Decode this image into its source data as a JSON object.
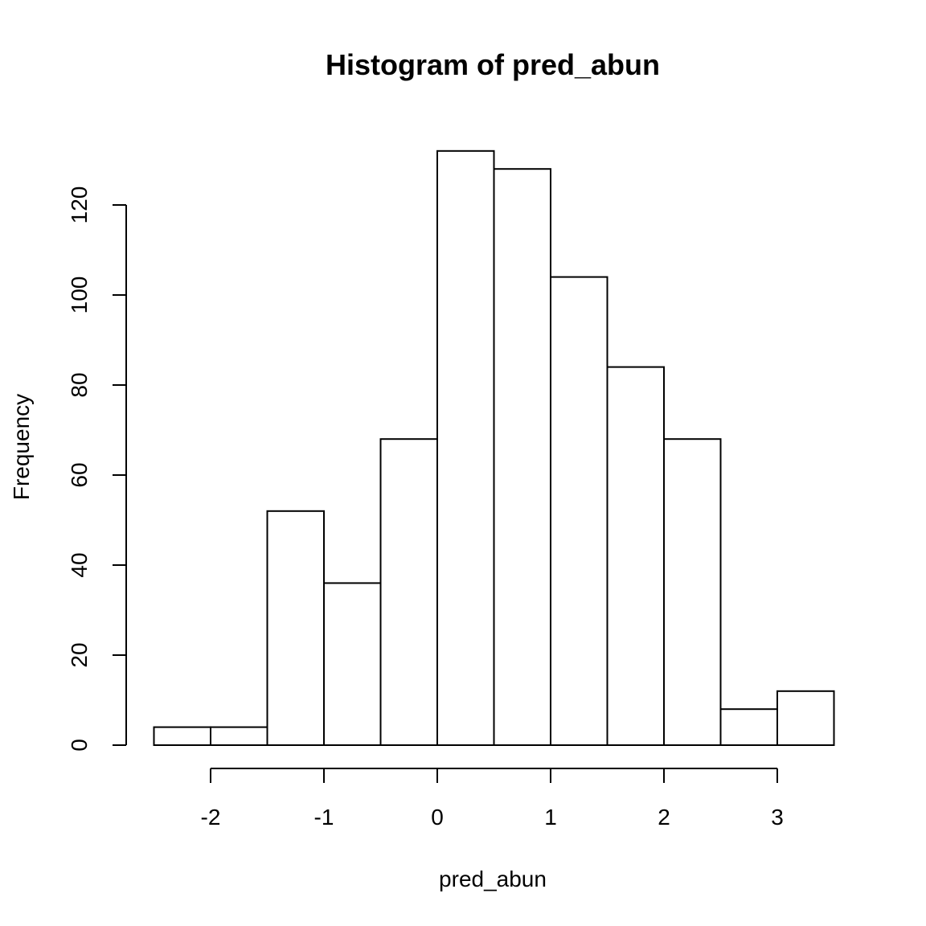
{
  "chart_data": {
    "type": "bar",
    "title": "Histogram of pred_abun",
    "xlabel": "pred_abun",
    "ylabel": "Frequency",
    "bins": [
      {
        "start": -2.5,
        "end": -2.0,
        "count": 4
      },
      {
        "start": -2.0,
        "end": -1.5,
        "count": 4
      },
      {
        "start": -1.5,
        "end": -1.0,
        "count": 52
      },
      {
        "start": -1.0,
        "end": -0.5,
        "count": 36
      },
      {
        "start": -0.5,
        "end": 0.0,
        "count": 68
      },
      {
        "start": 0.0,
        "end": 0.5,
        "count": 132
      },
      {
        "start": 0.5,
        "end": 1.0,
        "count": 128
      },
      {
        "start": 1.0,
        "end": 1.5,
        "count": 104
      },
      {
        "start": 1.5,
        "end": 2.0,
        "count": 84
      },
      {
        "start": 2.0,
        "end": 2.5,
        "count": 68
      },
      {
        "start": 2.5,
        "end": 3.0,
        "count": 8
      },
      {
        "start": 3.0,
        "end": 3.5,
        "count": 12
      }
    ],
    "x_ticks": [
      {
        "value": -2,
        "label": "-2"
      },
      {
        "value": -1,
        "label": "-1"
      },
      {
        "value": 0,
        "label": "0"
      },
      {
        "value": 1,
        "label": "1"
      },
      {
        "value": 2,
        "label": "2"
      },
      {
        "value": 3,
        "label": "3"
      }
    ],
    "y_ticks": [
      {
        "value": 0,
        "label": "0"
      },
      {
        "value": 20,
        "label": "20"
      },
      {
        "value": 40,
        "label": "40"
      },
      {
        "value": 60,
        "label": "60"
      },
      {
        "value": 80,
        "label": "80"
      },
      {
        "value": 100,
        "label": "100"
      },
      {
        "value": 120,
        "label": "120"
      }
    ],
    "xlim": [
      -2.5,
      3.5
    ],
    "ylim": [
      0,
      132
    ],
    "grid": false,
    "legend": "none",
    "colors": {
      "bar_fill": "#ffffff",
      "bar_stroke": "#000000"
    }
  }
}
